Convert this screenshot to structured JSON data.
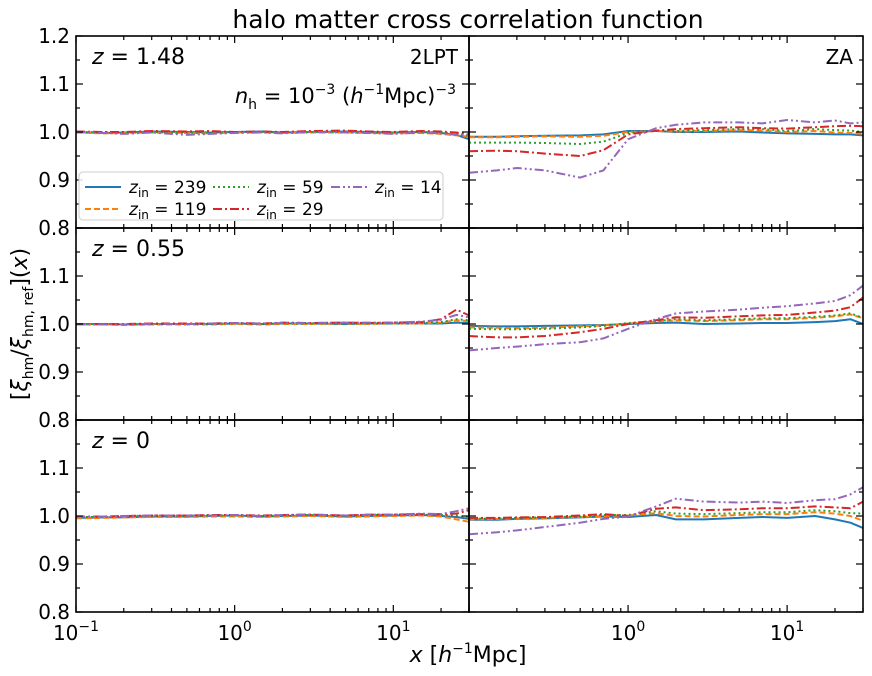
{
  "chart_data": {
    "type": "line",
    "title": "halo matter cross correlation function",
    "xlabel": "x [h⁻¹Mpc]",
    "ylabel": "[ξ_hm/ξ_hm,ref](x)",
    "xscale": "log",
    "xlim": [
      0.1,
      30
    ],
    "ylim": [
      0.8,
      1.2
    ],
    "yticks": [
      "0.8",
      "0.9",
      "1.0",
      "1.1",
      "1.2"
    ],
    "xticks": [
      {
        "base": "10",
        "exp": "−1"
      },
      {
        "base": "10",
        "exp": "0"
      },
      {
        "base": "10",
        "exp": "1"
      }
    ],
    "columns": [
      "2LPT",
      "ZA"
    ],
    "rows": [
      {
        "z": "1.48",
        "label": "z = 1.48"
      },
      {
        "z": "0.55",
        "label": "z = 0.55"
      },
      {
        "z": "0",
        "label": "z = 0"
      }
    ],
    "annotation": "n_h = 10⁻³ (h⁻¹Mpc)⁻³",
    "legend": [
      {
        "name": "z_in = 239",
        "num": "239",
        "color": "#1f77b4",
        "dash": "solid"
      },
      {
        "name": "z_in = 119",
        "num": "119",
        "color": "#ff7f0e",
        "dash": "dashed"
      },
      {
        "name": "z_in = 59",
        "num": "59",
        "color": "#2ca02c",
        "dash": "dotted"
      },
      {
        "name": "z_in = 29",
        "num": "29",
        "color": "#d62728",
        "dash": "dashdot"
      },
      {
        "name": "z_in = 14",
        "num": "14",
        "color": "#9467bd",
        "dash": "dashdotdot"
      }
    ],
    "x": [
      0.1,
      0.15,
      0.2,
      0.3,
      0.5,
      0.7,
      1.0,
      1.5,
      2.0,
      3.0,
      5.0,
      7.0,
      10.0,
      15.0,
      20.0,
      25.0,
      30.0
    ],
    "panels": [
      {
        "row": 0,
        "col": 0,
        "series": [
          [
            1.0,
            0.998,
            0.999,
            1.001,
            1.0,
            0.999,
            1.0,
            1.001,
            0.999,
            1.0,
            1.001,
            1.0,
            0.999,
            1.0,
            0.998,
            0.994,
            0.985
          ],
          [
            0.999,
            0.997,
            0.998,
            0.999,
            0.998,
            0.997,
            0.999,
            0.999,
            0.998,
            0.999,
            0.999,
            0.998,
            0.997,
            0.998,
            0.996,
            0.993,
            0.99
          ],
          [
            1.0,
            0.999,
            0.999,
            1.0,
            0.999,
            0.999,
            1.0,
            1.0,
            0.999,
            1.0,
            1.0,
            0.999,
            0.999,
            1.0,
            0.999,
            0.996,
            0.992
          ],
          [
            1.001,
            1.0,
            1.0,
            1.002,
            1.001,
            1.002,
            1.0,
            1.001,
            1.0,
            1.002,
            1.003,
            1.001,
            1.0,
            1.002,
            1.001,
            0.999,
            0.995
          ],
          [
            1.0,
            0.998,
            0.996,
            0.999,
            0.994,
            0.996,
            0.998,
            0.999,
            0.997,
            1.0,
            0.999,
            0.998,
            0.996,
            0.999,
            0.997,
            0.994,
            0.993
          ]
        ]
      },
      {
        "row": 0,
        "col": 1,
        "series": [
          [
            0.99,
            0.99,
            0.991,
            0.992,
            0.993,
            0.995,
            1.002,
            1.002,
            1.0,
            1.0,
            1.001,
            0.999,
            0.997,
            0.996,
            0.995,
            0.995,
            0.993
          ],
          [
            0.989,
            0.989,
            0.99,
            0.991,
            0.99,
            0.992,
            1.0,
            1.002,
            1.001,
            1.002,
            1.004,
            1.003,
            1.0,
            1.002,
            0.999,
            0.998,
            0.996
          ],
          [
            0.978,
            0.978,
            0.978,
            0.977,
            0.975,
            0.98,
            0.998,
            1.003,
            1.002,
            1.004,
            1.006,
            1.006,
            1.002,
            1.006,
            1.004,
            1.003,
            1.0
          ],
          [
            0.96,
            0.961,
            0.96,
            0.955,
            0.95,
            0.962,
            0.995,
            1.003,
            1.006,
            1.008,
            1.01,
            1.008,
            1.007,
            1.01,
            1.012,
            1.013,
            1.012
          ],
          [
            0.915,
            0.92,
            0.925,
            0.92,
            0.905,
            0.92,
            0.985,
            1.008,
            1.015,
            1.02,
            1.02,
            1.018,
            1.025,
            1.02,
            1.024,
            1.018,
            1.02
          ]
        ]
      },
      {
        "row": 1,
        "col": 0,
        "series": [
          [
            1.0,
            1.0,
            0.999,
            1.0,
            1.0,
            1.0,
            1.001,
            1.0,
            1.001,
            1.001,
            1.0,
            1.001,
            1.001,
            1.001,
            1.001,
            1.003,
            1.002
          ],
          [
            0.999,
            0.999,
            0.998,
            0.999,
            0.999,
            0.999,
            1.0,
            0.999,
            1.0,
            1.0,
            1.001,
            1.0,
            1.001,
            1.001,
            1.003,
            1.008,
            1.006
          ],
          [
            1.0,
            1.0,
            0.999,
            1.0,
            1.0,
            1.0,
            1.001,
            1.0,
            1.001,
            1.001,
            1.001,
            1.001,
            1.001,
            1.002,
            1.004,
            1.01,
            1.008
          ],
          [
            1.0,
            1.0,
            1.0,
            1.001,
            1.001,
            1.001,
            1.002,
            1.001,
            1.003,
            1.002,
            1.003,
            1.002,
            1.003,
            1.004,
            1.01,
            1.03,
            1.018
          ],
          [
            0.999,
            0.999,
            0.999,
            1.0,
            1.0,
            1.001,
            1.002,
            1.001,
            1.002,
            1.002,
            1.003,
            1.003,
            1.003,
            1.005,
            1.009,
            1.019,
            1.014
          ]
        ]
      },
      {
        "row": 1,
        "col": 1,
        "series": [
          [
            0.996,
            0.995,
            0.995,
            0.996,
            0.997,
            0.998,
            1.0,
            1.002,
            1.003,
            1.0,
            1.001,
            1.002,
            1.002,
            1.004,
            1.006,
            1.01,
            1.0
          ],
          [
            0.993,
            0.992,
            0.991,
            0.992,
            0.995,
            0.997,
            1.001,
            1.005,
            1.008,
            1.006,
            1.008,
            1.01,
            1.01,
            1.013,
            1.016,
            1.02,
            1.012
          ],
          [
            0.99,
            0.989,
            0.989,
            0.99,
            0.993,
            0.996,
            1.002,
            1.006,
            1.01,
            1.008,
            1.01,
            1.012,
            1.012,
            1.015,
            1.018,
            1.022,
            1.013
          ],
          [
            0.975,
            0.972,
            0.972,
            0.975,
            0.983,
            0.99,
            1.0,
            1.008,
            1.014,
            1.013,
            1.016,
            1.018,
            1.019,
            1.024,
            1.028,
            1.035,
            1.055
          ],
          [
            0.945,
            0.95,
            0.953,
            0.958,
            0.962,
            0.97,
            0.99,
            1.01,
            1.022,
            1.026,
            1.03,
            1.034,
            1.037,
            1.043,
            1.048,
            1.06,
            1.08
          ]
        ]
      },
      {
        "row": 2,
        "col": 0,
        "series": [
          [
            0.996,
            0.997,
            0.997,
            0.999,
            0.999,
            1.0,
            1.001,
            0.999,
            1.0,
            1.001,
            0.999,
            1.0,
            1.001,
            1.002,
            1.0,
            0.998,
            0.994
          ],
          [
            0.995,
            0.996,
            0.997,
            0.998,
            0.998,
            0.999,
            0.999,
            0.998,
            0.999,
            1.0,
            0.998,
            0.999,
            1.0,
            1.001,
            0.999,
            0.993,
            0.988
          ],
          [
            0.998,
            0.998,
            0.999,
            1.0,
            1.0,
            1.001,
            1.001,
            1.0,
            1.001,
            1.002,
            1.0,
            1.002,
            1.002,
            1.003,
            1.002,
            1.001,
            0.996
          ],
          [
            0.999,
            0.999,
            1.0,
            1.001,
            1.001,
            1.002,
            1.002,
            1.001,
            1.002,
            1.003,
            1.001,
            1.003,
            1.003,
            1.004,
            1.004,
            1.005,
            1.012
          ],
          [
            0.999,
            0.999,
            1.0,
            1.001,
            1.001,
            1.001,
            1.002,
            1.0,
            1.002,
            1.003,
            1.001,
            1.003,
            1.003,
            1.005,
            1.004,
            1.01,
            1.016
          ]
        ]
      },
      {
        "row": 2,
        "col": 1,
        "series": [
          [
            0.992,
            0.992,
            0.994,
            0.995,
            0.997,
            0.999,
            0.998,
            1.002,
            0.993,
            0.993,
            0.996,
            0.998,
            0.996,
            1.0,
            0.993,
            0.986,
            0.975
          ],
          [
            0.993,
            0.994,
            0.995,
            0.996,
            0.998,
            1.0,
            1.001,
            1.006,
            1.0,
            0.999,
            1.002,
            1.004,
            1.004,
            1.008,
            1.005,
            1.0,
            0.99
          ],
          [
            0.994,
            0.995,
            0.996,
            0.997,
            0.999,
            1.002,
            1.002,
            1.01,
            1.005,
            1.004,
            1.006,
            1.008,
            1.008,
            1.012,
            1.01,
            1.006,
            1.005
          ],
          [
            0.996,
            0.996,
            0.997,
            0.998,
            1.001,
            1.004,
            1.0,
            1.015,
            1.018,
            1.012,
            1.014,
            1.016,
            1.016,
            1.02,
            1.018,
            1.016,
            1.03
          ],
          [
            0.962,
            0.966,
            0.97,
            0.977,
            0.986,
            0.994,
            0.999,
            1.02,
            1.036,
            1.03,
            1.028,
            1.03,
            1.027,
            1.033,
            1.035,
            1.045,
            1.06
          ]
        ]
      }
    ]
  }
}
